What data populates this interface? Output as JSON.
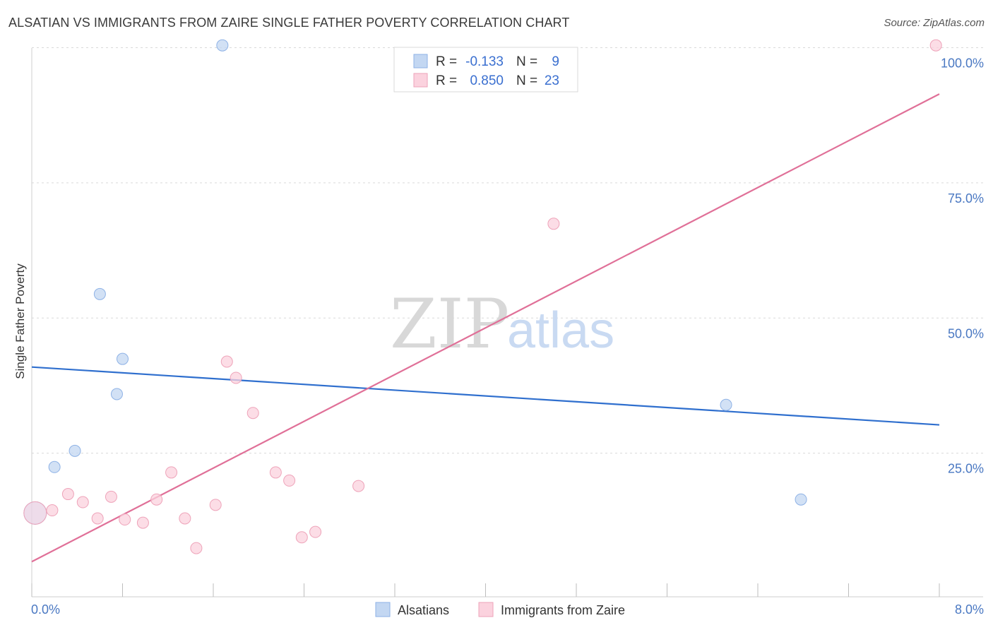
{
  "title": "ALSATIAN VS IMMIGRANTS FROM ZAIRE SINGLE FATHER POVERTY CORRELATION CHART",
  "source": "Source: ZipAtlas.com",
  "watermark": {
    "zip": "ZIP",
    "atlas": "atlas"
  },
  "chart_data": {
    "type": "scatter",
    "title": "ALSATIAN VS IMMIGRANTS FROM ZAIRE SINGLE FATHER POVERTY CORRELATION CHART",
    "xlabel": "",
    "ylabel": "Single Father Poverty",
    "xlim": [
      0,
      8
    ],
    "ylim": [
      0,
      100
    ],
    "x_tick_labels": [
      "0.0%",
      "8.0%"
    ],
    "y_ticks": [
      25,
      50,
      75,
      100
    ],
    "y_tick_labels": [
      "25.0%",
      "50.0%",
      "75.0%",
      "100.0%"
    ],
    "grid": true,
    "legend_position": "top-center",
    "colors": {
      "Alsatians": "#a9c6ee",
      "Immigrants from Zaire": "#f5b7c8",
      "Alsatians_line": "#2f6fce",
      "Immigrants from Zaire_line": "#e07098"
    },
    "legend": [
      {
        "name": "Alsatians",
        "r_label": "R = ",
        "r": "-0.133",
        "n_label": "N = ",
        "n": "9"
      },
      {
        "name": "Immigrants from Zaire",
        "r_label": "R = ",
        "r": "0.850",
        "n_label": "N = ",
        "n": "23"
      }
    ],
    "series": [
      {
        "name": "Alsatians",
        "points": [
          [
            0.03,
            15.5
          ],
          [
            0.2,
            24
          ],
          [
            0.38,
            27
          ],
          [
            0.6,
            56
          ],
          [
            0.75,
            37.5
          ],
          [
            0.8,
            44
          ],
          [
            1.68,
            102
          ],
          [
            6.12,
            35.5
          ],
          [
            6.78,
            18
          ]
        ],
        "trend": [
          [
            0,
            42.5
          ],
          [
            8,
            31.8
          ]
        ]
      },
      {
        "name": "Immigrants from Zaire",
        "points": [
          [
            0.03,
            15.5
          ],
          [
            0.18,
            16
          ],
          [
            0.32,
            19
          ],
          [
            0.45,
            17.5
          ],
          [
            0.58,
            14.5
          ],
          [
            0.7,
            18.5
          ],
          [
            0.82,
            14.3
          ],
          [
            0.98,
            13.7
          ],
          [
            1.1,
            18
          ],
          [
            1.23,
            23
          ],
          [
            1.35,
            14.5
          ],
          [
            1.45,
            9
          ],
          [
            1.62,
            17
          ],
          [
            1.72,
            43.5
          ],
          [
            1.8,
            40.5
          ],
          [
            1.95,
            34
          ],
          [
            2.15,
            23
          ],
          [
            2.27,
            21.5
          ],
          [
            2.38,
            11
          ],
          [
            2.5,
            12
          ],
          [
            2.88,
            20.5
          ],
          [
            4.6,
            69
          ],
          [
            7.97,
            102
          ]
        ],
        "trend": [
          [
            0,
            6.5
          ],
          [
            8,
            93
          ]
        ]
      }
    ]
  }
}
